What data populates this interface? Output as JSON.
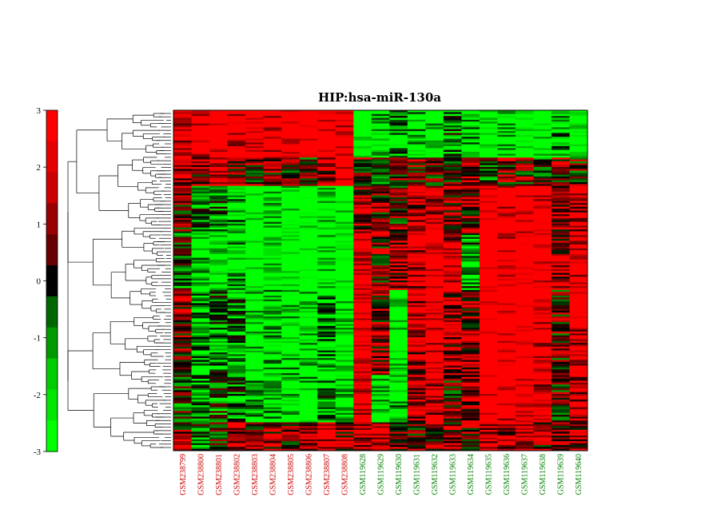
{
  "chart_data": {
    "type": "heatmap",
    "title": "HIP:hsa-miR-130a",
    "colorbar": {
      "ticks": [
        "3",
        "2",
        "1",
        "0",
        "-1",
        "-2",
        "-3"
      ],
      "range": [
        -3,
        3
      ],
      "colors": [
        "#ff0000",
        "#e60000",
        "#cc0000",
        "#990000",
        "#660000",
        "#000000",
        "#006600",
        "#009900",
        "#00cc00",
        "#00e600",
        "#00ff00"
      ]
    },
    "columns": [
      {
        "label": "GSM238799",
        "group": "red"
      },
      {
        "label": "GSM238800",
        "group": "red"
      },
      {
        "label": "GSM238801",
        "group": "red"
      },
      {
        "label": "GSM238802",
        "group": "red"
      },
      {
        "label": "GSM238803",
        "group": "red"
      },
      {
        "label": "GSM238804",
        "group": "red"
      },
      {
        "label": "GSM238805",
        "group": "red"
      },
      {
        "label": "GSM238806",
        "group": "red"
      },
      {
        "label": "GSM238807",
        "group": "red"
      },
      {
        "label": "GSM238808",
        "group": "red"
      },
      {
        "label": "GSM119628",
        "group": "green"
      },
      {
        "label": "GSM119629",
        "group": "green"
      },
      {
        "label": "GSM119630",
        "group": "green"
      },
      {
        "label": "GSM119631",
        "group": "green"
      },
      {
        "label": "GSM119632",
        "group": "green"
      },
      {
        "label": "GSM119633",
        "group": "green"
      },
      {
        "label": "GSM119634",
        "group": "green"
      },
      {
        "label": "GSM119635",
        "group": "green"
      },
      {
        "label": "GSM119636",
        "group": "green"
      },
      {
        "label": "GSM119637",
        "group": "green"
      },
      {
        "label": "GSM119638",
        "group": "green"
      },
      {
        "label": "GSM119639",
        "group": "green"
      },
      {
        "label": "GSM119640",
        "group": "green"
      }
    ],
    "group_colors": {
      "red": "#cc0000",
      "green": "#008000"
    },
    "row_blocks": [
      {
        "rows": 25,
        "profile": [
          1.5,
          1.8,
          2.2,
          1.8,
          2.0,
          2.0,
          2.2,
          2.4,
          2.3,
          2.0,
          -2.2,
          -1.5,
          -1.0,
          -1.5,
          -1.8,
          -0.8,
          -1.5,
          -2.0,
          -1.8,
          -2.2,
          -2.0,
          -1.2,
          -2.2
        ]
      },
      {
        "rows": 15,
        "profile": [
          1.0,
          0.8,
          1.8,
          0.8,
          0.4,
          0.5,
          0.2,
          0.2,
          1.0,
          2.2,
          0.5,
          -0.2,
          0.3,
          0.5,
          0.3,
          0.2,
          1.0,
          -0.5,
          0.5,
          0.3,
          0.0,
          0.5,
          0.2
        ]
      },
      {
        "rows": 25,
        "profile": [
          0.5,
          -0.8,
          -0.8,
          -1.2,
          -2.2,
          -1.8,
          -2.0,
          -2.3,
          -2.0,
          -2.0,
          1.0,
          0.5,
          0.3,
          1.2,
          1.5,
          0.8,
          0.6,
          2.4,
          2.0,
          2.2,
          1.8,
          1.0,
          1.5
        ]
      },
      {
        "rows": 30,
        "profile": [
          -0.3,
          -1.5,
          -2.0,
          -1.5,
          -2.4,
          -2.0,
          -2.4,
          -2.4,
          -2.0,
          -2.4,
          2.0,
          0.5,
          1.0,
          1.5,
          2.2,
          1.5,
          -1.0,
          2.5,
          2.0,
          2.5,
          2.2,
          1.0,
          1.8
        ]
      },
      {
        "rows": 45,
        "profile": [
          0.6,
          -1.2,
          -0.8,
          -1.0,
          -1.8,
          -1.5,
          -1.6,
          -1.8,
          -1.2,
          -2.0,
          2.2,
          0.6,
          -2.0,
          1.2,
          2.0,
          1.0,
          0.8,
          2.5,
          2.3,
          2.4,
          1.8,
          0.3,
          1.6
        ]
      },
      {
        "rows": 25,
        "profile": [
          -0.2,
          -1.0,
          -0.6,
          -0.8,
          -1.5,
          -1.2,
          -1.8,
          -1.7,
          -1.0,
          -1.8,
          1.8,
          -1.8,
          -1.5,
          1.0,
          1.5,
          0.3,
          1.0,
          2.3,
          2.0,
          2.2,
          1.5,
          0.2,
          1.4
        ]
      },
      {
        "rows": 15,
        "profile": [
          0.5,
          -0.5,
          0.2,
          1.2,
          0.5,
          0.8,
          0.6,
          1.0,
          1.8,
          0.8,
          1.5,
          1.8,
          0.5,
          0.5,
          0.8,
          0.6,
          0.5,
          1.5,
          1.2,
          1.5,
          0.6,
          0.6,
          1.0
        ]
      }
    ]
  }
}
